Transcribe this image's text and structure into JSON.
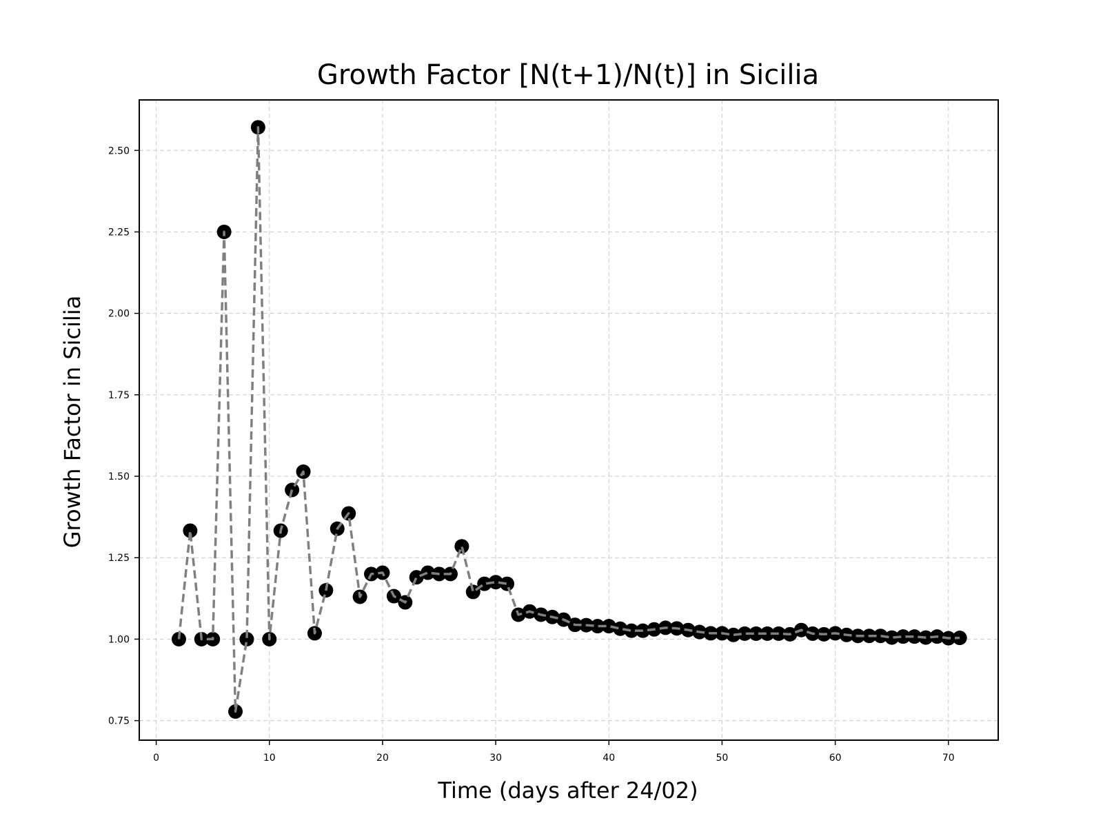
{
  "chart_data": {
    "type": "line",
    "title": "Growth Factor [N(t+1)/N(t)] in Sicilia",
    "xlabel": "Time (days after 24/02)",
    "ylabel": "Growth Factor in Sicilia",
    "xlim": [
      -1.5,
      74.4
    ],
    "ylim": [
      0.69,
      2.655
    ],
    "xticks": [
      0,
      10,
      20,
      30,
      40,
      50,
      60,
      70
    ],
    "xtick_labels": [
      "0",
      "10",
      "20",
      "30",
      "40",
      "50",
      "60",
      "70"
    ],
    "yticks": [
      0.75,
      1.0,
      1.25,
      1.5,
      1.75,
      2.0,
      2.25,
      2.5
    ],
    "ytick_labels": [
      "0.75",
      "1.00",
      "1.25",
      "1.50",
      "1.75",
      "2.00",
      "2.25",
      "2.50"
    ],
    "grid": true,
    "colors": {
      "line": "#808080",
      "marker": "#000000",
      "grid": "#cccccc"
    },
    "x": [
      2,
      3,
      4,
      5,
      6,
      7,
      8,
      9,
      10,
      11,
      12,
      13,
      14,
      15,
      16,
      17,
      18,
      19,
      20,
      21,
      22,
      23,
      24,
      25,
      26,
      27,
      28,
      29,
      30,
      31,
      32,
      33,
      34,
      35,
      36,
      37,
      38,
      39,
      40,
      41,
      42,
      43,
      44,
      45,
      46,
      47,
      48,
      49,
      50,
      51,
      52,
      53,
      54,
      55,
      56,
      57,
      58,
      59,
      60,
      61,
      62,
      63,
      64,
      65,
      66,
      67,
      68,
      69,
      70,
      71
    ],
    "y": [
      1.0,
      1.333,
      1.0,
      1.0,
      2.25,
      0.778,
      1.0,
      2.571,
      1.0,
      1.333,
      1.458,
      1.514,
      1.018,
      1.15,
      1.339,
      1.386,
      1.13,
      1.2,
      1.204,
      1.132,
      1.113,
      1.19,
      1.204,
      1.2,
      1.2,
      1.285,
      1.145,
      1.17,
      1.175,
      1.17,
      1.075,
      1.085,
      1.075,
      1.068,
      1.06,
      1.044,
      1.043,
      1.04,
      1.04,
      1.032,
      1.026,
      1.026,
      1.03,
      1.035,
      1.033,
      1.028,
      1.022,
      1.018,
      1.018,
      1.013,
      1.017,
      1.017,
      1.017,
      1.017,
      1.015,
      1.028,
      1.017,
      1.015,
      1.018,
      1.013,
      1.01,
      1.01,
      1.01,
      1.005,
      1.008,
      1.008,
      1.005,
      1.008,
      1.003,
      1.004
    ]
  }
}
